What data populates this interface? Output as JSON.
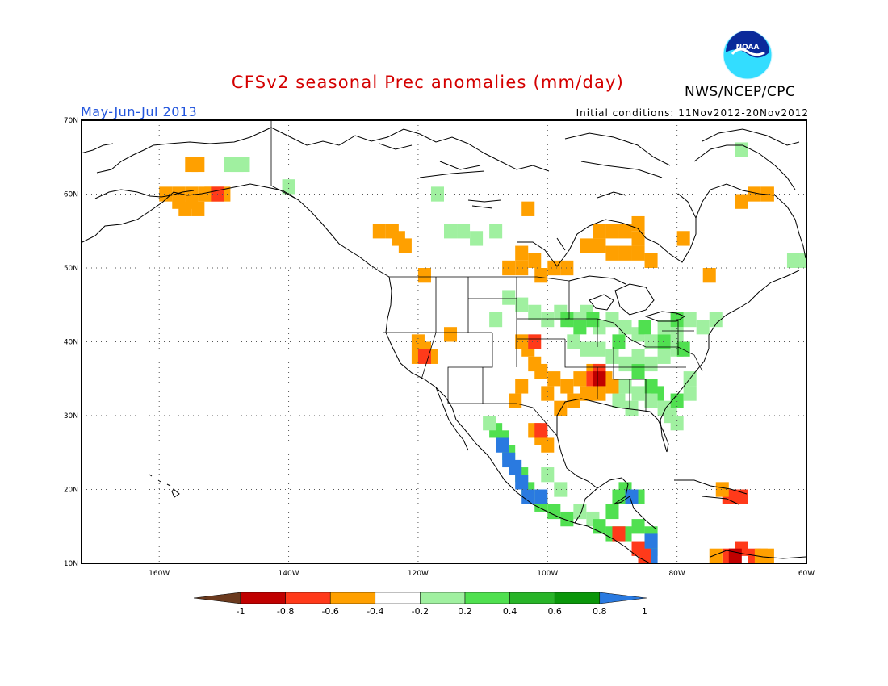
{
  "header": {
    "title": "CFSv2 seasonal Prec anomalies (mm/day)",
    "agency": "NWS/NCEP/CPC",
    "period": "May-Jun-Jul 2013",
    "initial_conditions": "Initial conditions: 11Nov2012-20Nov2012",
    "logo_text": "NOAA"
  },
  "map": {
    "lon_range": [
      -172,
      -60
    ],
    "lat_range": [
      10,
      70
    ],
    "lat_labels": [
      "70N",
      "60N",
      "50N",
      "40N",
      "30N",
      "20N",
      "10N"
    ],
    "lon_labels": [
      "160W",
      "140W",
      "120W",
      "100W",
      "80W",
      "60W"
    ],
    "lat_values": [
      70,
      60,
      50,
      40,
      30,
      20,
      10
    ],
    "lon_values": [
      -160,
      -140,
      -120,
      -100,
      -80,
      -60
    ],
    "grid_style": "dotted"
  },
  "legend": {
    "labels": [
      "-1",
      "-0.8",
      "-0.6",
      "-0.4",
      "-0.2",
      "0.2",
      "0.4",
      "0.6",
      "0.8",
      "1"
    ],
    "colors": [
      "#6b3a1e",
      "#c00000",
      "#ff3a1a",
      "#ffa000",
      "#ffffff",
      "#a0f0a0",
      "#50e050",
      "#28b428",
      "#0a960a",
      "#2a7ae0"
    ]
  },
  "anomaly_regions": [
    {
      "name": "alaska-west",
      "color": "#ffa000",
      "cells": [
        [
          -159,
          60
        ],
        [
          -157,
          60
        ],
        [
          -155,
          60
        ],
        [
          -157,
          59
        ],
        [
          -155,
          59
        ],
        [
          -156,
          58
        ],
        [
          -154,
          58
        ],
        [
          -153,
          60
        ],
        [
          -152,
          60
        ],
        [
          -150,
          60
        ],
        [
          -155,
          64
        ],
        [
          -154,
          64
        ]
      ]
    },
    {
      "name": "alaska-kenai",
      "color": "#ff3a1a",
      "cells": [
        [
          -151,
          60
        ]
      ]
    },
    {
      "name": "alaska-north-green",
      "color": "#a0f0a0",
      "cells": [
        [
          -149,
          64
        ],
        [
          -148,
          64
        ],
        [
          -147,
          64
        ],
        [
          -140,
          61
        ]
      ]
    },
    {
      "name": "bc-orange",
      "color": "#ffa000",
      "cells": [
        [
          -126,
          55
        ],
        [
          -124,
          55
        ],
        [
          -123,
          54
        ],
        [
          -122,
          53
        ],
        [
          -119,
          49
        ]
      ]
    },
    {
      "name": "yukon-green",
      "color": "#a0f0a0",
      "cells": [
        [
          -117,
          60
        ],
        [
          -115,
          55
        ],
        [
          -113,
          55
        ],
        [
          -111,
          54
        ],
        [
          -108,
          55
        ]
      ]
    },
    {
      "name": "prairies-orange",
      "color": "#ffa000",
      "cells": [
        [
          -103,
          58
        ],
        [
          -104,
          52
        ],
        [
          -102,
          51
        ],
        [
          -106,
          50
        ],
        [
          -104,
          50
        ],
        [
          -101,
          49
        ],
        [
          -99,
          50
        ],
        [
          -97,
          50
        ]
      ]
    },
    {
      "name": "hudson-orange",
      "color": "#ffa000",
      "cells": [
        [
          -92,
          55
        ],
        [
          -90,
          55
        ],
        [
          -88,
          55
        ],
        [
          -86,
          54
        ],
        [
          -94,
          53
        ],
        [
          -92,
          53
        ],
        [
          -90,
          52
        ],
        [
          -88,
          52
        ],
        [
          -86,
          52
        ],
        [
          -84,
          51
        ],
        [
          -79,
          54
        ],
        [
          -86,
          56
        ]
      ]
    },
    {
      "name": "quebec-orange",
      "color": "#ffa000",
      "cells": [
        [
          -70,
          59
        ],
        [
          -68,
          60
        ],
        [
          -66,
          60
        ],
        [
          -75,
          49
        ]
      ]
    },
    {
      "name": "labrador-green",
      "color": "#a0f0a0",
      "cells": [
        [
          -60,
          51
        ],
        [
          -62,
          51
        ],
        [
          -70,
          66
        ]
      ]
    },
    {
      "name": "sw-us-orange",
      "color": "#ffa000",
      "cells": [
        [
          -120,
          40
        ],
        [
          -119,
          39
        ],
        [
          -118,
          38
        ],
        [
          -120,
          38
        ],
        [
          -115,
          41
        ]
      ]
    },
    {
      "name": "sw-us-red",
      "color": "#ff3a1a",
      "cells": [
        [
          -119,
          38
        ]
      ]
    },
    {
      "name": "central-green",
      "color": "#a0f0a0",
      "cells": [
        [
          -106,
          46
        ],
        [
          -104,
          45
        ],
        [
          -102,
          44
        ],
        [
          -100,
          43
        ],
        [
          -108,
          43
        ],
        [
          -98,
          44
        ],
        [
          -96,
          43
        ],
        [
          -94,
          44
        ],
        [
          -92,
          42
        ],
        [
          -90,
          43
        ],
        [
          -88,
          42
        ],
        [
          -86,
          41
        ],
        [
          -84,
          40
        ],
        [
          -82,
          42
        ],
        [
          -80,
          41
        ],
        [
          -78,
          43
        ],
        [
          -76,
          42
        ],
        [
          -74,
          43
        ],
        [
          -96,
          40
        ],
        [
          -94,
          39
        ],
        [
          -92,
          39
        ],
        [
          -90,
          38
        ],
        [
          -88,
          37
        ],
        [
          -86,
          38
        ],
        [
          -84,
          37
        ],
        [
          -82,
          38
        ],
        [
          -80,
          39
        ]
      ]
    },
    {
      "name": "central-mid-green",
      "color": "#50e050",
      "cells": [
        [
          -97,
          43
        ],
        [
          -95,
          42
        ],
        [
          -93,
          43
        ],
        [
          -89,
          40
        ],
        [
          -85,
          42
        ],
        [
          -80,
          43
        ],
        [
          -79,
          39
        ],
        [
          -82,
          40
        ],
        [
          -86,
          36
        ],
        [
          -84,
          34
        ],
        [
          -83,
          33
        ],
        [
          -80,
          32
        ]
      ]
    },
    {
      "name": "southeast-green",
      "color": "#a0f0a0",
      "cells": [
        [
          -88,
          34
        ],
        [
          -86,
          33
        ],
        [
          -84,
          32
        ],
        [
          -82,
          31
        ],
        [
          -81,
          30
        ],
        [
          -80,
          29
        ],
        [
          -87,
          31
        ],
        [
          -89,
          32
        ],
        [
          -78,
          35
        ],
        [
          -78,
          33
        ]
      ]
    },
    {
      "name": "plains-orange",
      "color": "#ffa000",
      "cells": [
        [
          -104,
          40
        ],
        [
          -103,
          39
        ],
        [
          -102,
          37
        ],
        [
          -101,
          36
        ],
        [
          -99,
          35
        ],
        [
          -97,
          34
        ],
        [
          -95,
          35
        ],
        [
          -93,
          36
        ],
        [
          -91,
          35
        ],
        [
          -90,
          34
        ],
        [
          -92,
          33
        ],
        [
          -94,
          33
        ],
        [
          -96,
          32
        ],
        [
          -98,
          31
        ],
        [
          -100,
          33
        ],
        [
          -104,
          34
        ],
        [
          -105,
          32
        ],
        [
          -102,
          28
        ],
        [
          -101,
          27
        ],
        [
          -100,
          26
        ]
      ]
    },
    {
      "name": "plains-red",
      "color": "#ff3a1a",
      "cells": [
        [
          -93,
          35
        ],
        [
          -92,
          36
        ],
        [
          -102,
          40
        ],
        [
          -101,
          28
        ]
      ]
    },
    {
      "name": "plains-darkred",
      "color": "#c00000",
      "cells": [
        [
          -92,
          35
        ]
      ]
    },
    {
      "name": "mexico-west-green",
      "color": "#50e050",
      "cells": [
        [
          -108,
          28
        ],
        [
          -107,
          27
        ],
        [
          -106,
          25
        ],
        [
          -104,
          22
        ],
        [
          -103,
          20
        ],
        [
          -101,
          18
        ],
        [
          -99,
          17
        ],
        [
          -97,
          16
        ]
      ]
    },
    {
      "name": "mexico-west-blue",
      "color": "#2a7ae0",
      "cells": [
        [
          -107,
          26
        ],
        [
          -106,
          24
        ],
        [
          -105,
          23
        ],
        [
          -104,
          21
        ],
        [
          -103,
          19
        ],
        [
          -101,
          19
        ]
      ]
    },
    {
      "name": "mexico-lightgreen",
      "color": "#a0f0a0",
      "cells": [
        [
          -109,
          29
        ],
        [
          -100,
          22
        ],
        [
          -98,
          20
        ],
        [
          -95,
          17
        ],
        [
          -93,
          16
        ]
      ]
    },
    {
      "name": "central-america-green",
      "color": "#50e050",
      "cells": [
        [
          -90,
          17
        ],
        [
          -89,
          19
        ],
        [
          -88,
          20
        ],
        [
          -86,
          19
        ],
        [
          -92,
          15
        ],
        [
          -90,
          14
        ],
        [
          -88,
          14
        ],
        [
          -86,
          15
        ],
        [
          -84,
          14
        ],
        [
          -84,
          12
        ]
      ]
    },
    {
      "name": "central-america-blue",
      "color": "#2a7ae0",
      "cells": [
        [
          -84,
          13
        ],
        [
          -84,
          11
        ],
        [
          -87,
          19
        ]
      ]
    },
    {
      "name": "central-america-red",
      "color": "#ff3a1a",
      "cells": [
        [
          -89,
          14
        ],
        [
          -86,
          12
        ],
        [
          -85,
          11
        ]
      ]
    },
    {
      "name": "caribbean-red",
      "color": "#ff3a1a",
      "cells": [
        [
          -72,
          19
        ],
        [
          -70,
          19
        ],
        [
          -72,
          11
        ],
        [
          -70,
          12
        ],
        [
          -68,
          11
        ]
      ]
    },
    {
      "name": "caribbean-darkred",
      "color": "#c00000",
      "cells": [
        [
          -71,
          11
        ]
      ]
    },
    {
      "name": "caribbean-orange",
      "color": "#ffa000",
      "cells": [
        [
          -74,
          11
        ],
        [
          -67,
          11
        ],
        [
          -66,
          11
        ],
        [
          -73,
          20
        ]
      ]
    }
  ]
}
